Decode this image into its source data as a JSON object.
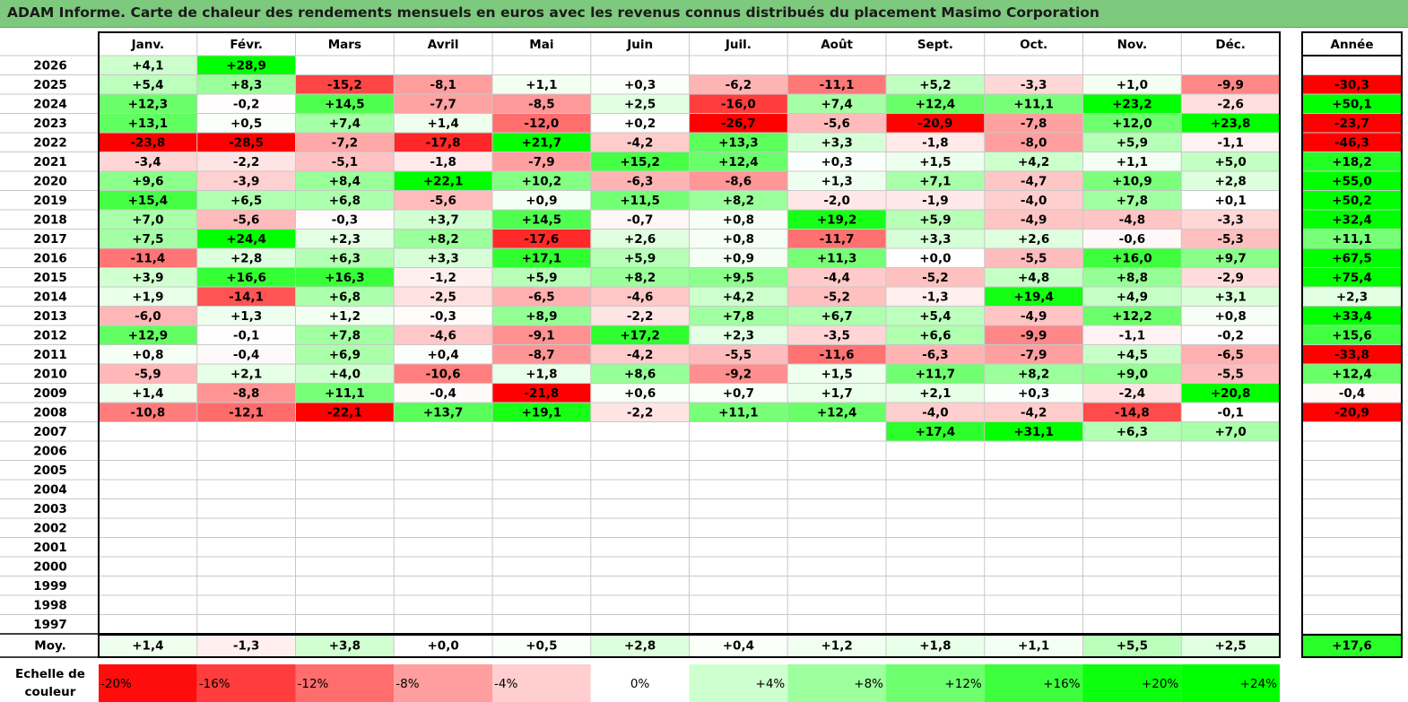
{
  "title": "ADAM Informe. Carte de chaleur des rendements mensuels en euros avec les revenus connus distribués du placement Masimo Corporation",
  "chart_data": {
    "type": "heatmap",
    "title": "ADAM Informe. Carte de chaleur des rendements mensuels en euros avec les revenus connus distribués du placement Masimo Corporation",
    "months": [
      "Janv.",
      "Févr.",
      "Mars",
      "Avril",
      "Mai",
      "Juin",
      "Juil.",
      "Août",
      "Sept.",
      "Oct.",
      "Nov.",
      "Déc."
    ],
    "year_header": "Année",
    "rows": [
      {
        "year": "2026",
        "values": [
          4.1,
          28.9,
          null,
          null,
          null,
          null,
          null,
          null,
          null,
          null,
          null,
          null
        ],
        "annual": null
      },
      {
        "year": "2025",
        "values": [
          5.4,
          8.3,
          -15.2,
          -8.1,
          1.1,
          0.3,
          -6.2,
          -11.1,
          5.2,
          -3.3,
          1.0,
          -9.9
        ],
        "annual": -30.3
      },
      {
        "year": "2024",
        "values": [
          12.3,
          -0.2,
          14.5,
          -7.7,
          -8.5,
          2.5,
          -16.0,
          7.4,
          12.4,
          11.1,
          23.2,
          -2.6
        ],
        "annual": 50.1
      },
      {
        "year": "2023",
        "values": [
          13.1,
          0.5,
          7.4,
          1.4,
          -12.0,
          0.2,
          -26.7,
          -5.6,
          -20.9,
          -7.8,
          12.0,
          23.8
        ],
        "annual": -23.7
      },
      {
        "year": "2022",
        "values": [
          -23.8,
          -28.5,
          -7.2,
          -17.8,
          21.7,
          -4.2,
          13.3,
          3.3,
          -1.8,
          -8.0,
          5.9,
          -1.1
        ],
        "annual": -46.3
      },
      {
        "year": "2021",
        "values": [
          -3.4,
          -2.2,
          -5.1,
          -1.8,
          -7.9,
          15.2,
          12.4,
          0.3,
          1.5,
          4.2,
          1.1,
          5.0
        ],
        "annual": 18.2
      },
      {
        "year": "2020",
        "values": [
          9.6,
          -3.9,
          8.4,
          22.1,
          10.2,
          -6.3,
          -8.6,
          1.3,
          7.1,
          -4.7,
          10.9,
          2.8
        ],
        "annual": 55.0
      },
      {
        "year": "2019",
        "values": [
          15.4,
          6.5,
          6.8,
          -5.6,
          0.9,
          11.5,
          8.2,
          -2.0,
          -1.9,
          -4.0,
          7.8,
          0.1
        ],
        "annual": 50.2
      },
      {
        "year": "2018",
        "values": [
          7.0,
          -5.6,
          -0.3,
          3.7,
          14.5,
          -0.7,
          0.8,
          19.2,
          5.9,
          -4.9,
          -4.8,
          -3.3
        ],
        "annual": 32.4
      },
      {
        "year": "2017",
        "values": [
          7.5,
          24.4,
          2.3,
          8.2,
          -17.6,
          2.6,
          0.8,
          -11.7,
          3.3,
          2.6,
          -0.6,
          -5.3
        ],
        "annual": 11.1
      },
      {
        "year": "2016",
        "values": [
          -11.4,
          2.8,
          6.3,
          3.3,
          17.1,
          5.9,
          0.9,
          11.3,
          0.0,
          -5.5,
          16.0,
          9.7
        ],
        "annual": 67.5
      },
      {
        "year": "2015",
        "values": [
          3.9,
          16.6,
          16.3,
          -1.2,
          5.9,
          8.2,
          9.5,
          -4.4,
          -5.2,
          4.8,
          8.8,
          -2.9
        ],
        "annual": 75.4
      },
      {
        "year": "2014",
        "values": [
          1.9,
          -14.1,
          6.8,
          -2.5,
          -6.5,
          -4.6,
          4.2,
          -5.2,
          -1.3,
          19.4,
          4.9,
          3.1
        ],
        "annual": 2.3
      },
      {
        "year": "2013",
        "values": [
          -6.0,
          1.3,
          1.2,
          -0.3,
          8.9,
          -2.2,
          7.8,
          6.7,
          5.4,
          -4.9,
          12.2,
          0.8
        ],
        "annual": 33.4
      },
      {
        "year": "2012",
        "values": [
          12.9,
          -0.1,
          7.8,
          -4.6,
          -9.1,
          17.2,
          2.3,
          -3.5,
          6.6,
          -9.9,
          -1.1,
          -0.2
        ],
        "annual": 15.6
      },
      {
        "year": "2011",
        "values": [
          0.8,
          -0.4,
          6.9,
          0.4,
          -8.7,
          -4.2,
          -5.5,
          -11.6,
          -6.3,
          -7.9,
          4.5,
          -6.5
        ],
        "annual": -33.8
      },
      {
        "year": "2010",
        "values": [
          -5.9,
          2.1,
          4.0,
          -10.6,
          1.8,
          8.6,
          -9.2,
          1.5,
          11.7,
          8.2,
          9.0,
          -5.5
        ],
        "annual": 12.4
      },
      {
        "year": "2009",
        "values": [
          1.4,
          -8.8,
          11.1,
          -0.4,
          -21.8,
          0.6,
          0.7,
          1.7,
          2.1,
          0.3,
          -2.4,
          20.8
        ],
        "annual": -0.4
      },
      {
        "year": "2008",
        "values": [
          -10.8,
          -12.1,
          -22.1,
          13.7,
          19.1,
          -2.2,
          11.1,
          12.4,
          -4.0,
          -4.2,
          -14.8,
          -0.1
        ],
        "annual": -20.9
      },
      {
        "year": "2007",
        "values": [
          null,
          null,
          null,
          null,
          null,
          null,
          null,
          null,
          17.4,
          31.1,
          6.3,
          7.0
        ],
        "annual": null
      },
      {
        "year": "2006",
        "values": [
          null,
          null,
          null,
          null,
          null,
          null,
          null,
          null,
          null,
          null,
          null,
          null
        ],
        "annual": null
      },
      {
        "year": "2005",
        "values": [
          null,
          null,
          null,
          null,
          null,
          null,
          null,
          null,
          null,
          null,
          null,
          null
        ],
        "annual": null
      },
      {
        "year": "2004",
        "values": [
          null,
          null,
          null,
          null,
          null,
          null,
          null,
          null,
          null,
          null,
          null,
          null
        ],
        "annual": null
      },
      {
        "year": "2003",
        "values": [
          null,
          null,
          null,
          null,
          null,
          null,
          null,
          null,
          null,
          null,
          null,
          null
        ],
        "annual": null
      },
      {
        "year": "2002",
        "values": [
          null,
          null,
          null,
          null,
          null,
          null,
          null,
          null,
          null,
          null,
          null,
          null
        ],
        "annual": null
      },
      {
        "year": "2001",
        "values": [
          null,
          null,
          null,
          null,
          null,
          null,
          null,
          null,
          null,
          null,
          null,
          null
        ],
        "annual": null
      },
      {
        "year": "2000",
        "values": [
          null,
          null,
          null,
          null,
          null,
          null,
          null,
          null,
          null,
          null,
          null,
          null
        ],
        "annual": null
      },
      {
        "year": "1999",
        "values": [
          null,
          null,
          null,
          null,
          null,
          null,
          null,
          null,
          null,
          null,
          null,
          null
        ],
        "annual": null
      },
      {
        "year": "1998",
        "values": [
          null,
          null,
          null,
          null,
          null,
          null,
          null,
          null,
          null,
          null,
          null,
          null
        ],
        "annual": null
      },
      {
        "year": "1997",
        "values": [
          null,
          null,
          null,
          null,
          null,
          null,
          null,
          null,
          null,
          null,
          null,
          null
        ],
        "annual": null
      }
    ],
    "average": {
      "label": "Moy.",
      "values": [
        1.4,
        -1.3,
        3.8,
        0.0,
        0.5,
        2.8,
        0.4,
        1.2,
        1.8,
        1.1,
        5.5,
        2.5
      ],
      "annual": 17.6
    },
    "scale": {
      "label_line1": "Echelle de",
      "label_line2": "couleur",
      "labels": [
        "-20%",
        "-16%",
        "-12%",
        "-8%",
        "-4%",
        "0%",
        "+4%",
        "+8%",
        "+12%",
        "+16%",
        "+20%",
        "+24%"
      ],
      "values": [
        -20,
        -16,
        -12,
        -8,
        -4,
        0,
        4,
        8,
        12,
        16,
        20,
        24
      ]
    },
    "colors": {
      "negative_max": "#ff0000",
      "neutral": "#ffffff",
      "positive_max": "#00ff00",
      "title_bar": "#7dc97d"
    }
  }
}
